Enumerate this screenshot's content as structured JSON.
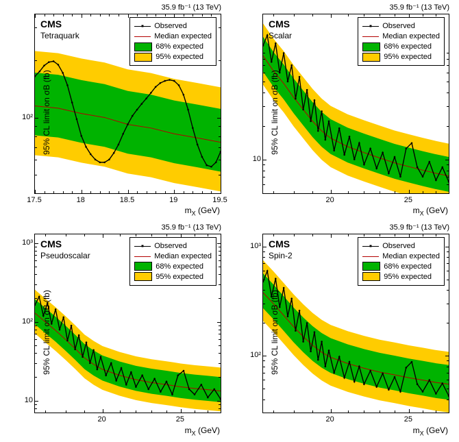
{
  "colors": {
    "band95": "#ffcc00",
    "band68": "#00b300",
    "median": "#b30000",
    "observed": "#000000",
    "axis": "#000000",
    "bg": "#ffffff"
  },
  "lumi_text": "35.9 fb⁻¹ (13 TeV)",
  "cms_text": "CMS",
  "ylabel_text": "95% CL limit on σB (fb)",
  "legend": {
    "observed": "Observed",
    "median": "Median expected",
    "band68": "68% expected",
    "band95": "95% expected"
  },
  "panels": [
    {
      "key": "tetraquark",
      "subtitle": "Tetraquark",
      "xlabel": "m_X (GeV)",
      "xlabel_var": "X",
      "xscale": "linear",
      "xlim": [
        17.5,
        19.5
      ],
      "xticks": [
        17.5,
        18,
        18.5,
        19,
        19.5
      ],
      "xminor_step": 0.1,
      "yscale": "log",
      "ylim": [
        40,
        350
      ],
      "yticks": [
        {
          "v": 100,
          "label": "10²"
        }
      ],
      "band95_lo_factor": 0.55,
      "band95_hi_factor": 1.95,
      "band68_lo_factor": 0.7,
      "band68_hi_factor": 1.5,
      "median": [
        [
          17.5,
          115
        ],
        [
          17.75,
          112
        ],
        [
          18.0,
          105
        ],
        [
          18.25,
          100
        ],
        [
          18.5,
          92
        ],
        [
          18.75,
          88
        ],
        [
          19.0,
          82
        ],
        [
          19.25,
          78
        ],
        [
          19.5,
          74
        ]
      ],
      "observed": [
        [
          17.5,
          165
        ],
        [
          17.55,
          175
        ],
        [
          17.6,
          188
        ],
        [
          17.65,
          196
        ],
        [
          17.7,
          198
        ],
        [
          17.75,
          190
        ],
        [
          17.8,
          172
        ],
        [
          17.85,
          148
        ],
        [
          17.9,
          120
        ],
        [
          17.95,
          98
        ],
        [
          18.0,
          80
        ],
        [
          18.05,
          70
        ],
        [
          18.1,
          64
        ],
        [
          18.15,
          60
        ],
        [
          18.2,
          58
        ],
        [
          18.25,
          58
        ],
        [
          18.3,
          60
        ],
        [
          18.35,
          65
        ],
        [
          18.4,
          72
        ],
        [
          18.45,
          82
        ],
        [
          18.5,
          92
        ],
        [
          18.55,
          102
        ],
        [
          18.6,
          110
        ],
        [
          18.65,
          118
        ],
        [
          18.7,
          126
        ],
        [
          18.75,
          135
        ],
        [
          18.8,
          145
        ],
        [
          18.85,
          152
        ],
        [
          18.9,
          156
        ],
        [
          18.95,
          158
        ],
        [
          19.0,
          156
        ],
        [
          19.05,
          148
        ],
        [
          19.1,
          132
        ],
        [
          19.15,
          110
        ],
        [
          19.2,
          88
        ],
        [
          19.25,
          72
        ],
        [
          19.3,
          62
        ],
        [
          19.35,
          56
        ],
        [
          19.4,
          55
        ],
        [
          19.45,
          58
        ],
        [
          19.5,
          66
        ]
      ]
    },
    {
      "key": "scalar",
      "subtitle": "Scalar",
      "xlabel": "m_X (GeV)",
      "xlabel_var": "X",
      "xscale": "log",
      "xlim": [
        16.5,
        28
      ],
      "xticks": [
        20,
        25
      ],
      "xminor": [
        17,
        18,
        19,
        21,
        22,
        23,
        24,
        26,
        27
      ],
      "yscale": "log",
      "ylim": [
        5,
        200
      ],
      "yticks": [
        {
          "v": 10,
          "label": "10"
        }
      ],
      "band95_lo_factor": 0.55,
      "band95_hi_factor": 1.95,
      "band68_lo_factor": 0.72,
      "band68_hi_factor": 1.48,
      "median": [
        [
          16.5,
          85
        ],
        [
          17,
          62
        ],
        [
          17.5,
          48
        ],
        [
          18,
          36
        ],
        [
          18.5,
          28
        ],
        [
          19,
          22
        ],
        [
          19.5,
          18
        ],
        [
          20,
          15.5
        ],
        [
          21,
          13
        ],
        [
          22,
          11.5
        ],
        [
          23,
          10.3
        ],
        [
          24,
          9.3
        ],
        [
          25,
          8.6
        ],
        [
          26,
          8.0
        ],
        [
          27,
          7.5
        ],
        [
          28,
          7.1
        ]
      ],
      "observed": [
        [
          16.5,
          105
        ],
        [
          16.7,
          130
        ],
        [
          16.9,
          75
        ],
        [
          17.1,
          110
        ],
        [
          17.3,
          60
        ],
        [
          17.5,
          90
        ],
        [
          17.7,
          50
        ],
        [
          17.9,
          70
        ],
        [
          18.1,
          35
        ],
        [
          18.3,
          55
        ],
        [
          18.5,
          28
        ],
        [
          18.7,
          42
        ],
        [
          18.9,
          22
        ],
        [
          19.1,
          34
        ],
        [
          19.3,
          18
        ],
        [
          19.5,
          27
        ],
        [
          19.7,
          15
        ],
        [
          19.9,
          22
        ],
        [
          20.2,
          12
        ],
        [
          20.5,
          19
        ],
        [
          20.8,
          11
        ],
        [
          21.1,
          16
        ],
        [
          21.4,
          10
        ],
        [
          21.7,
          14
        ],
        [
          22.0,
          9
        ],
        [
          22.4,
          12.5
        ],
        [
          22.8,
          8.3
        ],
        [
          23.2,
          11.5
        ],
        [
          23.6,
          7.5
        ],
        [
          24.0,
          10.5
        ],
        [
          24.4,
          7.0
        ],
        [
          24.8,
          12.5
        ],
        [
          25.2,
          14
        ],
        [
          25.6,
          8.5
        ],
        [
          26.0,
          7.0
        ],
        [
          26.5,
          9.5
        ],
        [
          27.0,
          6.5
        ],
        [
          27.5,
          8.5
        ],
        [
          28.0,
          6.3
        ]
      ]
    },
    {
      "key": "pseudoscalar",
      "subtitle": "Pseudoscalar",
      "xlabel": "m_X (GeV)",
      "xlabel_var": "X",
      "xscale": "log",
      "xlim": [
        16.5,
        28
      ],
      "xticks": [
        20,
        25
      ],
      "xminor": [
        17,
        18,
        19,
        21,
        22,
        23,
        24,
        26,
        27
      ],
      "yscale": "log",
      "ylim": [
        7,
        1300
      ],
      "yticks": [
        {
          "v": 10,
          "label": "10"
        },
        {
          "v": 100,
          "label": "10²"
        },
        {
          "v": 1000,
          "label": "10³"
        }
      ],
      "band95_lo_factor": 0.55,
      "band95_hi_factor": 1.98,
      "band68_lo_factor": 0.72,
      "band68_hi_factor": 1.5,
      "median": [
        [
          16.5,
          130
        ],
        [
          17,
          100
        ],
        [
          17.5,
          78
        ],
        [
          18,
          60
        ],
        [
          18.5,
          46
        ],
        [
          19,
          35
        ],
        [
          19.5,
          29
        ],
        [
          20,
          25
        ],
        [
          21,
          21
        ],
        [
          22,
          18.5
        ],
        [
          23,
          17
        ],
        [
          24,
          16
        ],
        [
          25,
          15
        ],
        [
          26,
          14.3
        ],
        [
          27,
          13.8
        ],
        [
          28,
          13.3
        ]
      ],
      "observed": [
        [
          16.5,
          165
        ],
        [
          16.7,
          210
        ],
        [
          16.9,
          120
        ],
        [
          17.1,
          175
        ],
        [
          17.3,
          95
        ],
        [
          17.5,
          145
        ],
        [
          17.7,
          80
        ],
        [
          17.9,
          115
        ],
        [
          18.1,
          58
        ],
        [
          18.3,
          90
        ],
        [
          18.5,
          45
        ],
        [
          18.7,
          68
        ],
        [
          18.9,
          36
        ],
        [
          19.1,
          55
        ],
        [
          19.3,
          30
        ],
        [
          19.5,
          44
        ],
        [
          19.7,
          25
        ],
        [
          19.9,
          36
        ],
        [
          20.2,
          21
        ],
        [
          20.5,
          30
        ],
        [
          20.8,
          18
        ],
        [
          21.1,
          26
        ],
        [
          21.4,
          16
        ],
        [
          21.7,
          23
        ],
        [
          22.0,
          15
        ],
        [
          22.4,
          21
        ],
        [
          22.8,
          14
        ],
        [
          23.2,
          19
        ],
        [
          23.6,
          13
        ],
        [
          24.0,
          17.5
        ],
        [
          24.4,
          12
        ],
        [
          24.8,
          21
        ],
        [
          25.2,
          24
        ],
        [
          25.6,
          14
        ],
        [
          26.0,
          12
        ],
        [
          26.5,
          16
        ],
        [
          27.0,
          11
        ],
        [
          27.5,
          14
        ],
        [
          28.0,
          10.5
        ]
      ]
    },
    {
      "key": "spin2",
      "subtitle": "Spin-2",
      "xlabel": "m_X (GeV)",
      "xlabel_var": "X",
      "xscale": "log",
      "xlim": [
        16.5,
        28
      ],
      "xticks": [
        20,
        25
      ],
      "xminor": [
        17,
        18,
        19,
        21,
        22,
        23,
        24,
        26,
        27
      ],
      "yscale": "log",
      "ylim": [
        30,
        1300
      ],
      "yticks": [
        {
          "v": 100,
          "label": "10²"
        },
        {
          "v": 1000,
          "label": "10³"
        }
      ],
      "band95_lo_factor": 0.55,
      "band95_hi_factor": 1.98,
      "band68_lo_factor": 0.72,
      "band68_hi_factor": 1.5,
      "median": [
        [
          16.5,
          380
        ],
        [
          17,
          300
        ],
        [
          17.5,
          235
        ],
        [
          18,
          185
        ],
        [
          18.5,
          150
        ],
        [
          19,
          125
        ],
        [
          19.5,
          108
        ],
        [
          20,
          97
        ],
        [
          21,
          85
        ],
        [
          22,
          77
        ],
        [
          23,
          71
        ],
        [
          24,
          67
        ],
        [
          25,
          63
        ],
        [
          26,
          60
        ],
        [
          27,
          57
        ],
        [
          28,
          55
        ]
      ],
      "observed": [
        [
          16.5,
          480
        ],
        [
          16.7,
          600
        ],
        [
          16.9,
          350
        ],
        [
          17.1,
          510
        ],
        [
          17.3,
          280
        ],
        [
          17.5,
          420
        ],
        [
          17.7,
          230
        ],
        [
          17.9,
          335
        ],
        [
          18.1,
          170
        ],
        [
          18.3,
          260
        ],
        [
          18.5,
          135
        ],
        [
          18.7,
          200
        ],
        [
          18.9,
          110
        ],
        [
          19.1,
          165
        ],
        [
          19.3,
          92
        ],
        [
          19.5,
          135
        ],
        [
          19.7,
          80
        ],
        [
          19.9,
          112
        ],
        [
          20.2,
          70
        ],
        [
          20.5,
          98
        ],
        [
          20.8,
          63
        ],
        [
          21.1,
          88
        ],
        [
          21.4,
          58
        ],
        [
          21.7,
          80
        ],
        [
          22.0,
          55
        ],
        [
          22.4,
          73
        ],
        [
          22.8,
          52
        ],
        [
          23.2,
          69
        ],
        [
          23.6,
          49
        ],
        [
          24.0,
          64
        ],
        [
          24.4,
          47
        ],
        [
          24.8,
          78
        ],
        [
          25.2,
          88
        ],
        [
          25.6,
          55
        ],
        [
          26.0,
          47
        ],
        [
          26.5,
          60
        ],
        [
          27.0,
          45
        ],
        [
          27.5,
          56
        ],
        [
          28.0,
          43
        ]
      ]
    }
  ]
}
